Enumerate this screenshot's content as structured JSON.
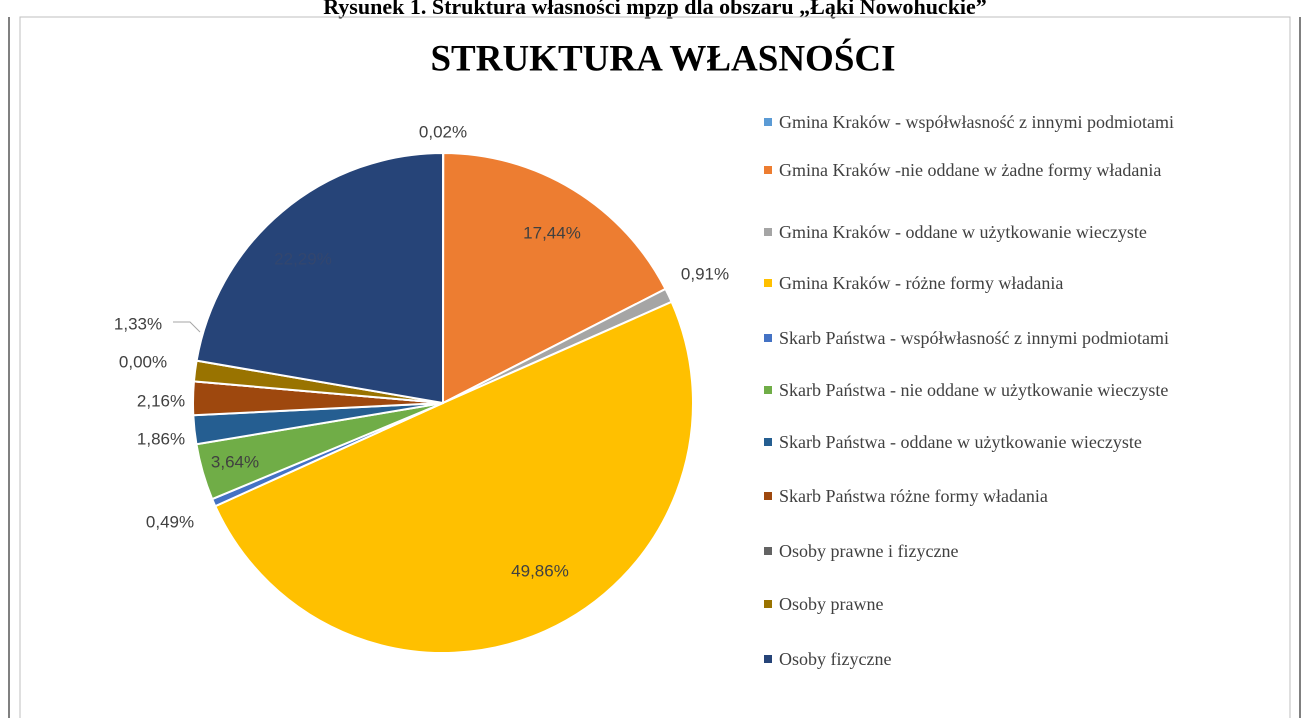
{
  "caption": "Rysunek 1. Struktura własności mpzp dla obszaru „Łąki Nowohuckie”",
  "chart_data": {
    "type": "pie",
    "title": "STRUKTURA WŁASNOŚCI",
    "categories": [
      "Gmina Kraków - współwłasność z innymi podmiotami",
      "Gmina Kraków -nie oddane w żadne formy władania",
      "Gmina Kraków - oddane w użytkowanie wieczyste",
      "Gmina Kraków - różne formy władania",
      "Skarb Państwa - współwłasność z innymi podmiotami",
      "Skarb Państwa - nie oddane w użytkowanie wieczyste",
      "Skarb Państwa - oddane w użytkowanie wieczyste",
      "Skarb Państwa różne formy władania",
      "Osoby prawne i fizyczne",
      "Osoby prawne",
      "Osoby fizyczne"
    ],
    "values": [
      0.02,
      17.44,
      0.91,
      49.86,
      0.49,
      3.64,
      1.86,
      2.16,
      0.0,
      1.33,
      22.29
    ],
    "value_labels": [
      "0,02%",
      "17,44%",
      "0,91%",
      "49,86%",
      "0,49%",
      "3,64%",
      "1,86%",
      "2,16%",
      "0,00%",
      "1,33%",
      "22,29%"
    ],
    "colors": [
      "#5b9bd5",
      "#ed7d31",
      "#a5a5a5",
      "#ffc000",
      "#4472c4",
      "#70ad47",
      "#255e91",
      "#9e480e",
      "#636363",
      "#997300",
      "#264478"
    ],
    "legend": "right"
  }
}
